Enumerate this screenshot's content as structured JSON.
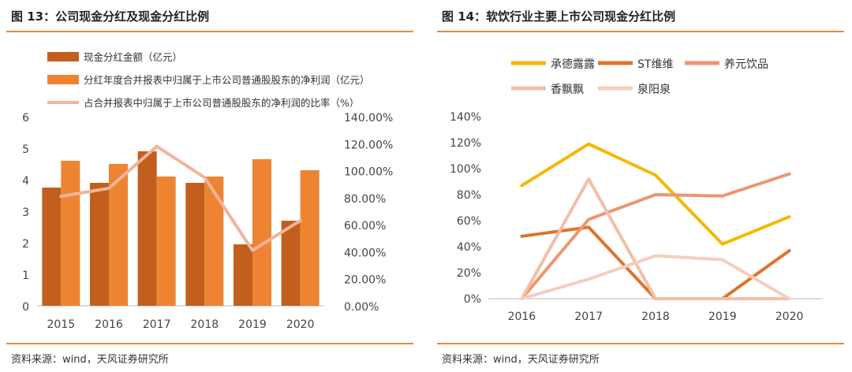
{
  "left": {
    "title": "图 13：公司现金分红及现金分红比例",
    "source": "资料来源：wind，天风证券研究所",
    "chart_data": {
      "type": "bar",
      "categories": [
        "2015",
        "2016",
        "2017",
        "2018",
        "2019",
        "2020"
      ],
      "series": [
        {
          "name": "现金分红金额（亿元）",
          "type": "bar",
          "axis": "left",
          "color": "#c25f1e",
          "values": [
            3.75,
            3.9,
            4.9,
            3.9,
            1.95,
            2.7
          ]
        },
        {
          "name": "分红年度合并报表中归属于上市公司普通股股东的净利润（亿元）",
          "type": "bar",
          "axis": "left",
          "color": "#ee8432",
          "values": [
            4.6,
            4.5,
            4.1,
            4.1,
            4.65,
            4.3
          ]
        },
        {
          "name": "占合并报表中归属于上市公司普通股股东的净利润的比率（%）",
          "type": "line",
          "axis": "right",
          "color": "#f3b49a",
          "values": [
            81,
            87,
            118,
            95,
            41,
            63
          ]
        }
      ],
      "ylim": [
        0,
        6
      ],
      "y2lim": [
        0,
        140
      ],
      "yticks": [
        "0",
        "1",
        "2",
        "3",
        "4",
        "5",
        "6"
      ],
      "y2ticks": [
        "0.00%",
        "20.00%",
        "40.00%",
        "60.00%",
        "80.00%",
        "100.00%",
        "120.00%",
        "140.00%"
      ],
      "legend": "top",
      "grid": false
    }
  },
  "right": {
    "title": "图 14：软饮行业主要上市公司现金分红比例",
    "source": "资料来源：wind，天风证券研究所",
    "chart_data": {
      "type": "line",
      "x": [
        "2016",
        "2017",
        "2018",
        "2019",
        "2020"
      ],
      "series": [
        {
          "name": "承德露露",
          "color": "#f5b800",
          "values": [
            87,
            119,
            95,
            42,
            63
          ]
        },
        {
          "name": "ST维维",
          "color": "#e0722c",
          "values": [
            48,
            55,
            0,
            0,
            37
          ]
        },
        {
          "name": "养元饮品",
          "color": "#ec9670",
          "values": [
            0,
            61,
            80,
            79,
            96
          ]
        },
        {
          "name": "香飘飘",
          "color": "#f2bfa7",
          "values": [
            0,
            92,
            0,
            0,
            0
          ]
        },
        {
          "name": "泉阳泉",
          "color": "#f6cdc0",
          "values": [
            0,
            15,
            33,
            30,
            0
          ]
        }
      ],
      "ylim": [
        0,
        140
      ],
      "yticks": [
        "0%",
        "20%",
        "40%",
        "60%",
        "80%",
        "100%",
        "120%",
        "140%"
      ],
      "legend": "top",
      "grid": false
    }
  }
}
